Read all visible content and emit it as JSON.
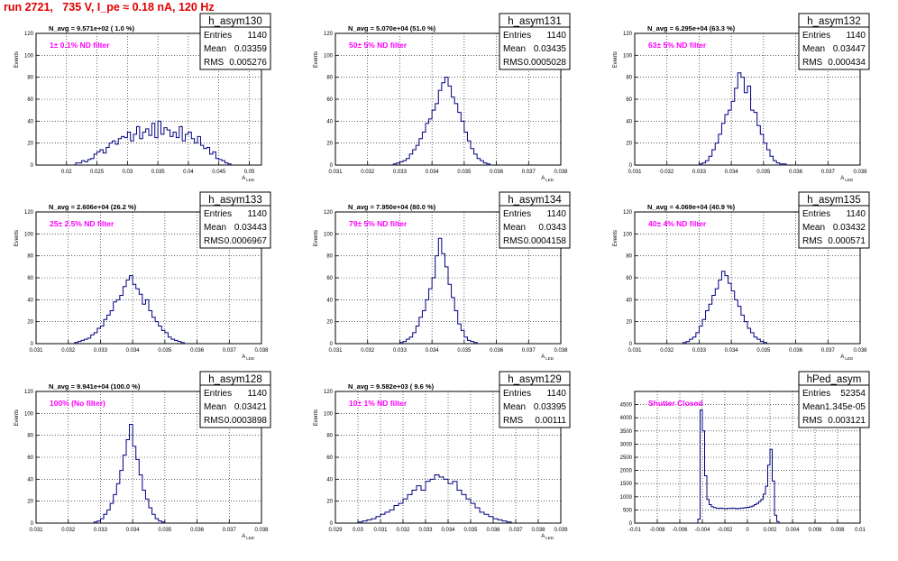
{
  "page_title": "run 2721,   735 V, I_pe ≈ 0.18 nA, 120 Hz",
  "colors": {
    "histogram_line": "#000080",
    "label_magenta": "#ff00ff",
    "title_red": "#e00000",
    "grid": "#000000"
  },
  "chart_data": [
    {
      "type": "histogram",
      "hist_name": "h_asym130",
      "stats": {
        "Entries": "1140",
        "Mean": "0.03359",
        "RMS": "0.005276"
      },
      "navg_text": "N_avg = 9.571e+02 ( 1.0 %)",
      "filter_label": "1± 0.1% ND filter",
      "xlabel": "A_LED",
      "ylabel": "Events",
      "xlim": [
        0.015,
        0.052
      ],
      "ylim": [
        0,
        120
      ],
      "xticks": [
        0.02,
        0.025,
        0.03,
        0.035,
        0.04,
        0.045,
        0.05
      ],
      "xtick_labels": [
        "0.02",
        "0.025",
        "0.03",
        "0.035",
        "0.04",
        "0.045",
        "0.05"
      ],
      "yticks": [
        0,
        20,
        40,
        60,
        80,
        100,
        120
      ],
      "ytick_labels": [
        "0",
        "20",
        "40",
        "60",
        "80",
        "100",
        "120"
      ],
      "grid": true,
      "bin_start": 0.0215,
      "bin_width": 0.0005,
      "counts": [
        2,
        2,
        4,
        3,
        5,
        6,
        10,
        12,
        14,
        11,
        16,
        20,
        22,
        19,
        24,
        26,
        25,
        30,
        22,
        28,
        35,
        24,
        30,
        33,
        27,
        38,
        25,
        40,
        28,
        34,
        32,
        26,
        30,
        25,
        35,
        22,
        28,
        30,
        24,
        20,
        26,
        18,
        15,
        16,
        10,
        12,
        6,
        5,
        4,
        2,
        1
      ]
    },
    {
      "type": "histogram",
      "hist_name": "h_asym131",
      "stats": {
        "Entries": "1140",
        "Mean": "0.03435",
        "RMS": "0.0005028"
      },
      "navg_text": "N_avg = 5.070e+04 (51.0 %)",
      "filter_label": "50± 5% ND filter",
      "xlabel": "A_LED",
      "ylabel": "Events",
      "xlim": [
        0.031,
        0.038
      ],
      "ylim": [
        0,
        120
      ],
      "xticks": [
        0.031,
        0.032,
        0.033,
        0.034,
        0.035,
        0.036,
        0.037,
        0.038
      ],
      "xtick_labels": [
        "0.031",
        "0.032",
        "0.033",
        "0.034",
        "0.035",
        "0.036",
        "0.037",
        "0.038"
      ],
      "yticks": [
        0,
        20,
        40,
        60,
        80,
        100,
        120
      ],
      "ytick_labels": [
        "0",
        "20",
        "40",
        "60",
        "80",
        "100",
        "120"
      ],
      "grid": true,
      "bin_start": 0.0328,
      "bin_width": 0.0001,
      "counts": [
        1,
        2,
        3,
        4,
        6,
        10,
        14,
        18,
        24,
        30,
        38,
        42,
        50,
        56,
        68,
        75,
        80,
        72,
        62,
        56,
        48,
        40,
        30,
        22,
        15,
        10,
        6,
        4,
        2,
        1
      ]
    },
    {
      "type": "histogram",
      "hist_name": "h_asym132",
      "stats": {
        "Entries": "1140",
        "Mean": "0.03447",
        "RMS": "0.000434"
      },
      "navg_text": "N_avg = 6.295e+04 (63.3 %)",
      "filter_label": "63± 5% ND filter",
      "xlabel": "A_LED",
      "ylabel": "Events",
      "xlim": [
        0.031,
        0.038
      ],
      "ylim": [
        0,
        120
      ],
      "xticks": [
        0.031,
        0.032,
        0.033,
        0.034,
        0.035,
        0.036,
        0.037,
        0.038
      ],
      "xtick_labels": [
        "0.031",
        "0.032",
        "0.033",
        "0.034",
        "0.035",
        "0.036",
        "0.037",
        "0.038"
      ],
      "yticks": [
        0,
        20,
        40,
        60,
        80,
        100,
        120
      ],
      "ytick_labels": [
        "0",
        "20",
        "40",
        "60",
        "80",
        "100",
        "120"
      ],
      "grid": true,
      "bin_start": 0.033,
      "bin_width": 0.0001,
      "counts": [
        1,
        2,
        4,
        8,
        14,
        20,
        28,
        38,
        46,
        50,
        58,
        70,
        84,
        80,
        66,
        72,
        50,
        48,
        36,
        28,
        20,
        14,
        8,
        4,
        2,
        1,
        1
      ]
    },
    {
      "type": "histogram",
      "hist_name": "h_asym133",
      "stats": {
        "Entries": "1140",
        "Mean": "0.03443",
        "RMS": "0.0006967"
      },
      "navg_text": "N_avg = 2.606e+04 (26.2 %)",
      "filter_label": "25± 2.5% ND filter",
      "xlabel": "A_LED",
      "ylabel": "Events",
      "xlim": [
        0.031,
        0.038
      ],
      "ylim": [
        0,
        120
      ],
      "xticks": [
        0.031,
        0.032,
        0.033,
        0.034,
        0.035,
        0.036,
        0.037,
        0.038
      ],
      "xtick_labels": [
        "0.031",
        "0.032",
        "0.033",
        "0.034",
        "0.035",
        "0.036",
        "0.037",
        "0.038"
      ],
      "yticks": [
        0,
        20,
        40,
        60,
        80,
        100,
        120
      ],
      "ytick_labels": [
        "0",
        "20",
        "40",
        "60",
        "80",
        "100",
        "120"
      ],
      "grid": true,
      "bin_start": 0.0322,
      "bin_width": 0.0001,
      "counts": [
        1,
        2,
        3,
        4,
        5,
        8,
        10,
        14,
        16,
        22,
        26,
        30,
        38,
        40,
        44,
        52,
        58,
        62,
        54,
        50,
        45,
        36,
        40,
        30,
        24,
        20,
        16,
        12,
        10,
        6,
        4,
        3,
        2,
        1
      ]
    },
    {
      "type": "histogram",
      "hist_name": "h_asym134",
      "stats": {
        "Entries": "1140",
        "Mean": "0.0343",
        "RMS": "0.0004158"
      },
      "navg_text": "N_avg = 7.950e+04 (80.0 %)",
      "filter_label": "79± 5% ND filter",
      "xlabel": "A_LED",
      "ylabel": "Events",
      "xlim": [
        0.031,
        0.038
      ],
      "ylim": [
        0,
        120
      ],
      "xticks": [
        0.031,
        0.032,
        0.033,
        0.034,
        0.035,
        0.036,
        0.037,
        0.038
      ],
      "xtick_labels": [
        "0.031",
        "0.032",
        "0.033",
        "0.034",
        "0.035",
        "0.036",
        "0.037",
        "0.038"
      ],
      "yticks": [
        0,
        20,
        40,
        60,
        80,
        100,
        120
      ],
      "ytick_labels": [
        "0",
        "20",
        "40",
        "60",
        "80",
        "100",
        "120"
      ],
      "grid": true,
      "bin_start": 0.033,
      "bin_width": 0.0001,
      "counts": [
        1,
        2,
        4,
        6,
        10,
        16,
        24,
        30,
        40,
        50,
        60,
        80,
        96,
        82,
        70,
        54,
        42,
        30,
        18,
        12,
        6,
        3,
        2,
        1
      ]
    },
    {
      "type": "histogram",
      "hist_name": "h_asym135",
      "stats": {
        "Entries": "1140",
        "Mean": "0.03432",
        "RMS": "0.000571"
      },
      "navg_text": "N_avg = 4.069e+04 (40.9 %)",
      "filter_label": "40± 4% ND filter",
      "xlabel": "A_LED",
      "ylabel": "Events",
      "xlim": [
        0.031,
        0.038
      ],
      "ylim": [
        0,
        120
      ],
      "xticks": [
        0.031,
        0.032,
        0.033,
        0.034,
        0.035,
        0.036,
        0.037,
        0.038
      ],
      "xtick_labels": [
        "0.031",
        "0.032",
        "0.033",
        "0.034",
        "0.035",
        "0.036",
        "0.037",
        "0.038"
      ],
      "yticks": [
        0,
        20,
        40,
        60,
        80,
        100,
        120
      ],
      "ytick_labels": [
        "0",
        "20",
        "40",
        "60",
        "80",
        "100",
        "120"
      ],
      "grid": true,
      "bin_start": 0.0325,
      "bin_width": 0.0001,
      "counts": [
        1,
        2,
        4,
        6,
        10,
        16,
        22,
        30,
        36,
        44,
        50,
        58,
        66,
        62,
        55,
        48,
        40,
        34,
        26,
        20,
        14,
        10,
        6,
        4,
        2,
        1
      ]
    },
    {
      "type": "histogram",
      "hist_name": "h_asym128",
      "stats": {
        "Entries": "1140",
        "Mean": "0.03421",
        "RMS": "0.0003898"
      },
      "navg_text": "N_avg = 9.941e+04 (100.0 %)",
      "filter_label": "100% (No filter)",
      "xlabel": "A_LED",
      "ylabel": "Events",
      "xlim": [
        0.031,
        0.038
      ],
      "ylim": [
        0,
        120
      ],
      "xticks": [
        0.031,
        0.032,
        0.033,
        0.034,
        0.035,
        0.036,
        0.037,
        0.038
      ],
      "xtick_labels": [
        "0.031",
        "0.032",
        "0.033",
        "0.034",
        "0.035",
        "0.036",
        "0.037",
        "0.038"
      ],
      "yticks": [
        0,
        20,
        40,
        60,
        80,
        100,
        120
      ],
      "ytick_labels": [
        "0",
        "20",
        "40",
        "60",
        "80",
        "100",
        "120"
      ],
      "grid": true,
      "bin_start": 0.0328,
      "bin_width": 0.0001,
      "counts": [
        1,
        2,
        4,
        8,
        12,
        18,
        26,
        36,
        48,
        62,
        76,
        90,
        70,
        58,
        44,
        30,
        22,
        14,
        8,
        4,
        2,
        1
      ]
    },
    {
      "type": "histogram",
      "hist_name": "h_asym129",
      "stats": {
        "Entries": "1140",
        "Mean": "0.03395",
        "RMS": "0.00111"
      },
      "navg_text": "N_avg = 9.582e+03 ( 9.6 %)",
      "filter_label": "10± 1% ND filter",
      "xlabel": "A_LED",
      "ylabel": "Events",
      "xlim": [
        0.029,
        0.039
      ],
      "ylim": [
        0,
        120
      ],
      "xticks": [
        0.029,
        0.03,
        0.031,
        0.032,
        0.033,
        0.034,
        0.035,
        0.036,
        0.037,
        0.038,
        0.039
      ],
      "xtick_labels": [
        "0.029",
        "0.03",
        "0.031",
        "0.032",
        "0.033",
        "0.034",
        "0.035",
        "0.036",
        "0.037",
        "0.038",
        "0.039"
      ],
      "yticks": [
        0,
        20,
        40,
        60,
        80,
        100,
        120
      ],
      "ytick_labels": [
        "0",
        "20",
        "40",
        "60",
        "80",
        "100",
        "120"
      ],
      "grid": true,
      "bin_start": 0.03,
      "bin_width": 0.0002,
      "counts": [
        1,
        2,
        3,
        4,
        6,
        8,
        10,
        12,
        16,
        18,
        22,
        26,
        30,
        34,
        30,
        38,
        40,
        44,
        42,
        40,
        36,
        38,
        30,
        26,
        22,
        18,
        14,
        10,
        8,
        6,
        4,
        3,
        2,
        1
      ]
    },
    {
      "type": "histogram",
      "hist_name": "hPed_asym",
      "stats": {
        "Entries": "52354",
        "Mean": "1.345e-05",
        "RMS": "0.003121"
      },
      "navg_text": "",
      "filter_label": "Shutter Closed",
      "xlabel": "",
      "ylabel": "",
      "xlim": [
        -0.01,
        0.01
      ],
      "ylim": [
        0,
        5000
      ],
      "xticks": [
        -0.01,
        -0.008,
        -0.006,
        -0.004,
        -0.002,
        0,
        0.002,
        0.004,
        0.006,
        0.008,
        0.01
      ],
      "xtick_labels": [
        "-0.01",
        "-0.008",
        "-0.006",
        "-0.004",
        "-0.002",
        "0",
        "0.002",
        "0.004",
        "0.006",
        "0.008",
        "0.01"
      ],
      "yticks": [
        0,
        500,
        1000,
        1500,
        2000,
        2500,
        3000,
        3500,
        4000,
        4500
      ],
      "ytick_labels": [
        "0",
        "500",
        "1000",
        "1500",
        "2000",
        "2500",
        "3000",
        "3500",
        "4000",
        "4500"
      ],
      "grid": true,
      "bin_start": -0.0044,
      "bin_width": 0.0002,
      "counts": [
        150,
        4300,
        3500,
        1800,
        900,
        700,
        620,
        590,
        570,
        560,
        570,
        560,
        550,
        560,
        560,
        570,
        560,
        550,
        560,
        570,
        580,
        590,
        600,
        620,
        650,
        700,
        750,
        820,
        900,
        1100,
        1400,
        2200,
        2800,
        1600,
        300,
        60
      ]
    }
  ]
}
